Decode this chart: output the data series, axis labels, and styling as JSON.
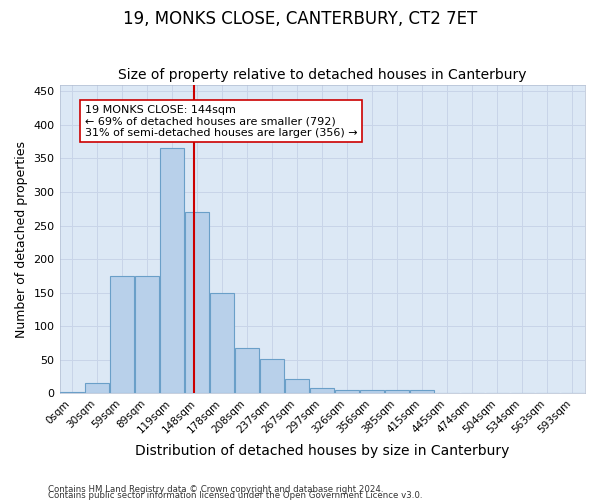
{
  "title1": "19, MONKS CLOSE, CANTERBURY, CT2 7ET",
  "title2": "Size of property relative to detached houses in Canterbury",
  "xlabel": "Distribution of detached houses by size in Canterbury",
  "ylabel": "Number of detached properties",
  "categories": [
    "0sqm",
    "30sqm",
    "59sqm",
    "89sqm",
    "119sqm",
    "148sqm",
    "178sqm",
    "208sqm",
    "237sqm",
    "267sqm",
    "297sqm",
    "326sqm",
    "356sqm",
    "385sqm",
    "415sqm",
    "445sqm",
    "474sqm",
    "504sqm",
    "534sqm",
    "563sqm",
    "593sqm"
  ],
  "values": [
    2,
    15,
    175,
    175,
    365,
    270,
    150,
    68,
    52,
    22,
    8,
    5,
    5,
    5,
    5,
    0,
    0,
    0,
    1,
    0,
    1
  ],
  "bar_color": "#b8d0ea",
  "bar_edge_color": "#6a9fc8",
  "vline_color": "#cc0000",
  "annotation_text": "19 MONKS CLOSE: 144sqm\n← 69% of detached houses are smaller (792)\n31% of semi-detached houses are larger (356) →",
  "annotation_box_color": "#ffffff",
  "annotation_box_edge": "#cc0000",
  "ylim": [
    0,
    460
  ],
  "yticks": [
    0,
    50,
    100,
    150,
    200,
    250,
    300,
    350,
    400,
    450
  ],
  "grid_color": "#c8d4e8",
  "bg_color": "#dce8f5",
  "footer1": "Contains HM Land Registry data © Crown copyright and database right 2024.",
  "footer2": "Contains public sector information licensed under the Open Government Licence v3.0.",
  "title1_fontsize": 12,
  "title2_fontsize": 10,
  "tick_fontsize": 7.5,
  "ylabel_fontsize": 9,
  "xlabel_fontsize": 10
}
